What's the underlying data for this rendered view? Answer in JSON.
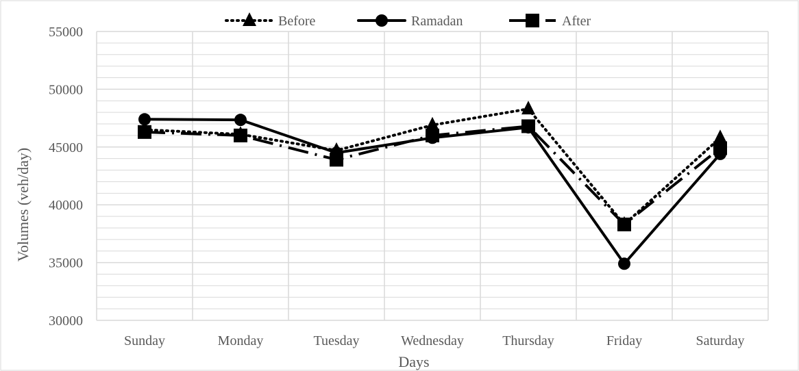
{
  "chart_data": {
    "type": "line",
    "title": "",
    "xlabel": "Days",
    "ylabel": "Volumes (veh/day)",
    "categories": [
      "Sunday",
      "Monday",
      "Tuesday",
      "Wednesday",
      "Thursday",
      "Friday",
      "Saturday"
    ],
    "ylim": [
      30000,
      55000
    ],
    "yticks": [
      30000,
      35000,
      40000,
      45000,
      50000,
      55000
    ],
    "ytick_labels": [
      "30000",
      "35000",
      "40000",
      "45000",
      "50000",
      "55000"
    ],
    "minor_gridline_step": 1000,
    "grid": true,
    "legend_position": "top-center",
    "series": [
      {
        "name": "Before",
        "values": [
          46500,
          46100,
          44700,
          46900,
          48300,
          38300,
          45800
        ],
        "marker": "triangle",
        "line_style": "dotted",
        "color": "#000000"
      },
      {
        "name": "Ramadan",
        "values": [
          47400,
          47350,
          44500,
          45800,
          46700,
          34900,
          44400
        ],
        "marker": "circle",
        "line_style": "solid",
        "color": "#000000"
      },
      {
        "name": "After",
        "values": [
          46300,
          46000,
          43900,
          46000,
          46800,
          38300,
          44900
        ],
        "marker": "square",
        "line_style": "dashdot",
        "color": "#000000"
      }
    ],
    "colors": {
      "gridline": "#d9d9d9",
      "axis_text": "#595959",
      "frame": "#d9d9d9"
    }
  }
}
